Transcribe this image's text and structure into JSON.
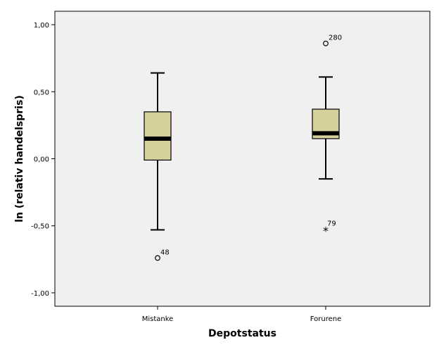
{
  "chart_data": {
    "type": "boxplot",
    "xlabel": "Depotstatus",
    "ylabel": "ln (relativ handelspris)",
    "ylim": [
      -1.1,
      1.1
    ],
    "yticks": [
      {
        "value": 1.0,
        "label": "1,00"
      },
      {
        "value": 0.5,
        "label": "0,50"
      },
      {
        "value": 0.0,
        "label": "0,00"
      },
      {
        "value": -0.5,
        "label": "-0,50"
      },
      {
        "value": -1.0,
        "label": "-1,00"
      }
    ],
    "grid": false,
    "categories": [
      "Mistanke",
      "Forurene"
    ],
    "boxes": [
      {
        "category": "Mistanke",
        "whisker_low": -0.53,
        "q1": -0.01,
        "median": 0.15,
        "q3": 0.35,
        "whisker_high": 0.64,
        "outliers": [
          {
            "value": -0.74,
            "label": "48",
            "marker": "circle"
          }
        ]
      },
      {
        "category": "Forurene",
        "whisker_low": -0.15,
        "q1": 0.15,
        "median": 0.19,
        "q3": 0.37,
        "whisker_high": 0.61,
        "outliers": [
          {
            "value": 0.86,
            "label": "280",
            "marker": "circle"
          },
          {
            "value": -0.53,
            "label": "79",
            "marker": "star"
          }
        ]
      }
    ],
    "colors": {
      "plot_background": "#f0f0f0",
      "box_fill": "#d5d09c",
      "stroke": "#000000"
    }
  }
}
